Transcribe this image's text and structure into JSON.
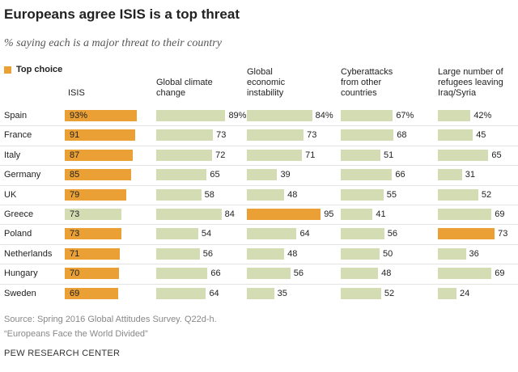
{
  "chart_data": {
    "type": "bar",
    "title": "Europeans agree ISIS is a top threat",
    "subtitle": "% saying each is a major threat to their country",
    "legend": {
      "label": "Top choice",
      "color": "#eaa034"
    },
    "categories": [
      "Spain",
      "France",
      "Italy",
      "Germany",
      "UK",
      "Greece",
      "Poland",
      "Netherlands",
      "Hungary",
      "Sweden"
    ],
    "series": [
      {
        "name": "ISIS",
        "labels": "inside",
        "values": [
          93,
          91,
          87,
          85,
          79,
          73,
          73,
          71,
          70,
          69
        ],
        "value_labels": [
          "93%",
          "91",
          "87",
          "85",
          "79",
          "73",
          "73",
          "71",
          "70",
          "69"
        ],
        "colors": [
          "#eaa034",
          "#eaa034",
          "#eaa034",
          "#eaa034",
          "#eaa034",
          "#d4dcb3",
          "#eaa034",
          "#eaa034",
          "#eaa034",
          "#eaa034"
        ]
      },
      {
        "name": "Global climate change",
        "labels": "outside",
        "values": [
          89,
          73,
          72,
          65,
          58,
          84,
          54,
          56,
          66,
          64
        ],
        "value_labels": [
          "89%",
          "73",
          "72",
          "65",
          "58",
          "84",
          "54",
          "56",
          "66",
          "64"
        ],
        "colors": [
          "#d4dcb3",
          "#d4dcb3",
          "#d4dcb3",
          "#d4dcb3",
          "#d4dcb3",
          "#d4dcb3",
          "#d4dcb3",
          "#d4dcb3",
          "#d4dcb3",
          "#d4dcb3"
        ]
      },
      {
        "name": "Global economic instability",
        "labels": "outside",
        "values": [
          84,
          73,
          71,
          39,
          48,
          95,
          64,
          48,
          56,
          35
        ],
        "value_labels": [
          "84%",
          "73",
          "71",
          "39",
          "48",
          "95",
          "64",
          "48",
          "56",
          "35"
        ],
        "colors": [
          "#d4dcb3",
          "#d4dcb3",
          "#d4dcb3",
          "#d4dcb3",
          "#d4dcb3",
          "#eaa034",
          "#d4dcb3",
          "#d4dcb3",
          "#d4dcb3",
          "#d4dcb3"
        ]
      },
      {
        "name": "Cyberattacks from other countries",
        "labels": "outside",
        "values": [
          67,
          68,
          51,
          66,
          55,
          41,
          56,
          50,
          48,
          52
        ],
        "value_labels": [
          "67%",
          "68",
          "51",
          "66",
          "55",
          "41",
          "56",
          "50",
          "48",
          "52"
        ],
        "colors": [
          "#d4dcb3",
          "#d4dcb3",
          "#d4dcb3",
          "#d4dcb3",
          "#d4dcb3",
          "#d4dcb3",
          "#d4dcb3",
          "#d4dcb3",
          "#d4dcb3",
          "#d4dcb3"
        ]
      },
      {
        "name": "Large number of refugees leaving Iraq/Syria",
        "labels": "outside",
        "values": [
          42,
          45,
          65,
          31,
          52,
          69,
          73,
          36,
          69,
          24
        ],
        "value_labels": [
          "42%",
          "45",
          "65",
          "31",
          "52",
          "69",
          "73",
          "36",
          "69",
          "24"
        ],
        "colors": [
          "#d4dcb3",
          "#d4dcb3",
          "#d4dcb3",
          "#d4dcb3",
          "#d4dcb3",
          "#d4dcb3",
          "#eaa034",
          "#d4dcb3",
          "#d4dcb3",
          "#d4dcb3"
        ]
      }
    ],
    "source": "Source: Spring 2016 Global Attitudes Survey. Q22d-h.",
    "report": "“Europeans Face the World Divided”",
    "organization": "PEW RESEARCH CENTER"
  }
}
